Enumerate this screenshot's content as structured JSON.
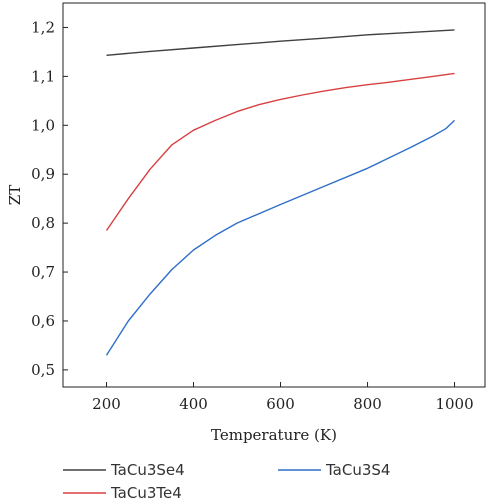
{
  "chart_data": {
    "type": "line",
    "xlabel": "Temperature (K)",
    "ylabel": "ZT",
    "xlim": [
      100,
      1070
    ],
    "ylim": [
      0.465,
      1.25
    ],
    "x_ticks": [
      200,
      400,
      600,
      800,
      1000
    ],
    "x_tick_labels": [
      "200",
      "400",
      "600",
      "800",
      "1000"
    ],
    "y_ticks": [
      0.5,
      0.6,
      0.7,
      0.8,
      0.9,
      1.0,
      1.1,
      1.2
    ],
    "y_tick_labels": [
      "0,5",
      "0,6",
      "0,7",
      "0,8",
      "0,9",
      "1,0",
      "1,1",
      "1,2"
    ],
    "grid": false,
    "legend_position": "bottom",
    "series": [
      {
        "name": "TaCu3Se4",
        "color": "#404040",
        "x": [
          200,
          300,
          400,
          500,
          600,
          700,
          800,
          900,
          1000
        ],
        "y": [
          1.143,
          1.151,
          1.158,
          1.165,
          1.172,
          1.178,
          1.185,
          1.19,
          1.195
        ]
      },
      {
        "name": "TaCu3Te4",
        "color": "#d94040",
        "x": [
          200,
          250,
          300,
          350,
          400,
          450,
          500,
          550,
          600,
          650,
          700,
          750,
          800,
          850,
          900,
          950,
          1000
        ],
        "y": [
          0.785,
          0.85,
          0.91,
          0.96,
          0.99,
          1.01,
          1.028,
          1.042,
          1.053,
          1.062,
          1.07,
          1.077,
          1.083,
          1.088,
          1.094,
          1.1,
          1.106
        ]
      },
      {
        "name": "TaCu3S4",
        "color": "#2f6fc8",
        "x": [
          200,
          250,
          300,
          350,
          400,
          450,
          500,
          600,
          700,
          800,
          900,
          950,
          980,
          1000
        ],
        "y": [
          0.53,
          0.6,
          0.655,
          0.705,
          0.745,
          0.775,
          0.8,
          0.838,
          0.875,
          0.912,
          0.955,
          0.978,
          0.993,
          1.01
        ]
      }
    ]
  }
}
